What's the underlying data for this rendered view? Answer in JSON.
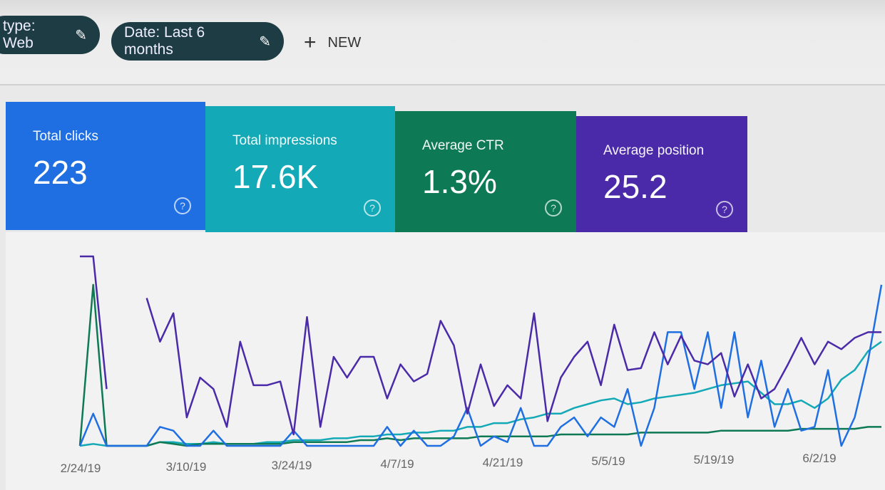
{
  "filters": {
    "chips": [
      {
        "label": "type: Web",
        "icon": "pencil-icon"
      },
      {
        "label": "Date: Last 6 months",
        "icon": "pencil-icon"
      }
    ],
    "new_label": "NEW",
    "new_icon": "plus-icon"
  },
  "metrics": [
    {
      "label": "Total clicks",
      "value": "223",
      "color": "#1f6fe3",
      "help": "?"
    },
    {
      "label": "Total impressions",
      "value": "17.6K",
      "color": "#13a9b6",
      "help": "?"
    },
    {
      "label": "Average CTR",
      "value": "1.3%",
      "color": "#0d7a55",
      "help": "?"
    },
    {
      "label": "Average position",
      "value": "25.2",
      "color": "#4a2aa8",
      "help": "?"
    }
  ],
  "chart_data": {
    "type": "line",
    "x_tick_labels": [
      "2/24/19",
      "3/10/19",
      "3/24/19",
      "4/7/19",
      "4/21/19",
      "5/5/19",
      "5/19/19",
      "6/2/19"
    ],
    "y_axis": "none shown (relative scale 0-100)",
    "grid": false,
    "series": [
      {
        "name": "Average position",
        "color": "#4a2aa8",
        "values": [
          100,
          100,
          30,
          null,
          null,
          78,
          55,
          70,
          15,
          36,
          30,
          10,
          55,
          32,
          32,
          34,
          6,
          68,
          10,
          47,
          36,
          47,
          47,
          25,
          43,
          34,
          38,
          66,
          53,
          17,
          43,
          21,
          32,
          25,
          70,
          13,
          36,
          47,
          55,
          32,
          64,
          40,
          41,
          60,
          43,
          58,
          45,
          43,
          49,
          26,
          43,
          25,
          30,
          43,
          57,
          43,
          55,
          51,
          57,
          60,
          60
        ]
      },
      {
        "name": "Total clicks",
        "color": "#1f6fe3",
        "values": [
          0,
          17,
          0,
          0,
          0,
          0,
          10,
          8,
          0,
          0,
          8,
          0,
          0,
          0,
          0,
          0,
          8,
          0,
          0,
          0,
          0,
          0,
          0,
          10,
          0,
          8,
          0,
          0,
          5,
          20,
          0,
          5,
          2,
          20,
          0,
          0,
          10,
          15,
          5,
          15,
          10,
          30,
          0,
          20,
          60,
          60,
          30,
          60,
          20,
          60,
          15,
          45,
          10,
          30,
          8,
          10,
          40,
          0,
          15,
          45,
          85
        ]
      },
      {
        "name": "Total impressions",
        "color": "#13a9b6",
        "values": [
          0,
          1,
          0,
          0,
          0,
          0,
          2,
          2,
          1,
          1,
          2,
          1,
          1,
          1,
          2,
          2,
          3,
          3,
          3,
          4,
          4,
          5,
          5,
          6,
          6,
          7,
          7,
          8,
          8,
          10,
          10,
          12,
          12,
          14,
          15,
          17,
          17,
          20,
          22,
          24,
          25,
          22,
          23,
          25,
          26,
          27,
          28,
          30,
          32,
          33,
          34,
          28,
          22,
          22,
          24,
          20,
          25,
          35,
          40,
          50,
          55
        ]
      },
      {
        "name": "Average CTR",
        "color": "#0d7a55",
        "values": [
          0,
          85,
          0,
          0,
          0,
          0,
          2,
          1,
          0,
          1,
          1,
          1,
          1,
          1,
          1,
          1,
          2,
          2,
          2,
          2,
          2,
          3,
          3,
          4,
          3,
          4,
          4,
          4,
          4,
          4,
          5,
          5,
          5,
          5,
          5,
          5,
          6,
          6,
          6,
          6,
          6,
          6,
          7,
          7,
          7,
          7,
          7,
          7,
          8,
          8,
          8,
          8,
          8,
          8,
          9,
          9,
          9,
          9,
          9,
          10,
          10
        ]
      }
    ]
  }
}
